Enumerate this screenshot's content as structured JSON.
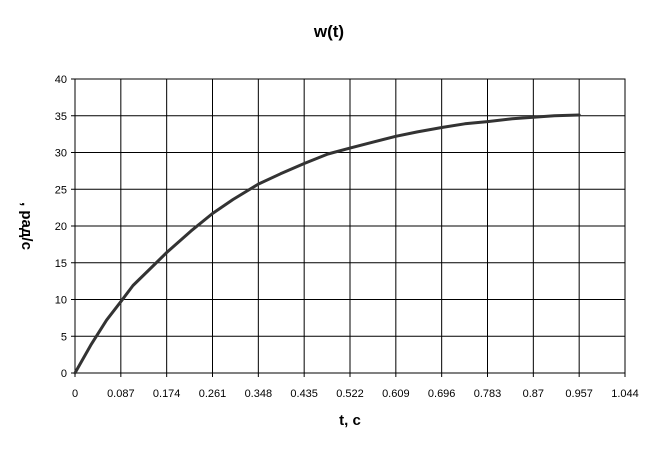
{
  "chart_data": {
    "type": "line",
    "title": "w(t)",
    "xlabel": "t, c",
    "ylabel": ", рад/с",
    "xlim": [
      0,
      1.044
    ],
    "ylim": [
      0,
      40
    ],
    "x_ticks": [
      "0",
      "0.087",
      "0.174",
      "0.261",
      "0.348",
      "0.435",
      "0.522",
      "0.609",
      "0.696",
      "0.783",
      "0.87",
      "0.957",
      "1.044"
    ],
    "y_ticks": [
      "0",
      "5",
      "10",
      "15",
      "20",
      "25",
      "30",
      "35",
      "40"
    ],
    "grid": true,
    "legend": "none",
    "line_color": "#333333",
    "series": [
      {
        "x": [
          0,
          0.03,
          0.06,
          0.087,
          0.11,
          0.15,
          0.174,
          0.22,
          0.261,
          0.3,
          0.348,
          0.39,
          0.435,
          0.48,
          0.522,
          0.565,
          0.609,
          0.65,
          0.696,
          0.74,
          0.783,
          0.83,
          0.87,
          0.91,
          0.957
        ],
        "y": [
          0,
          3.8,
          7.2,
          9.7,
          11.9,
          14.7,
          16.4,
          19.3,
          21.7,
          23.6,
          25.7,
          27.1,
          28.5,
          29.8,
          30.6,
          31.4,
          32.2,
          32.8,
          33.4,
          33.9,
          34.2,
          34.6,
          34.8,
          35.0,
          35.1
        ]
      }
    ]
  }
}
